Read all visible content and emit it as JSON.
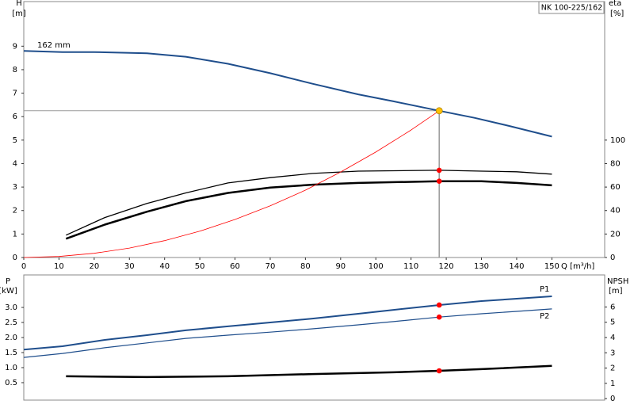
{
  "chart_data": [
    {
      "type": "line",
      "title": "NK 100-225/162",
      "x_label": "Q [m³/h]",
      "y_label": "H",
      "y_unit": "[m]",
      "y2_label": "eta",
      "y2_unit": "[%]",
      "xlim": [
        0,
        165
      ],
      "xticks": [
        0,
        10,
        20,
        30,
        40,
        50,
        60,
        70,
        80,
        90,
        100,
        110,
        120,
        130,
        140,
        150
      ],
      "ylim": [
        0,
        10.9
      ],
      "yticks": [
        0,
        1,
        2,
        3,
        4,
        5,
        6,
        7,
        8,
        9
      ],
      "y2lim": [
        0,
        218
      ],
      "y2ticks": [
        0,
        20,
        40,
        60,
        80,
        100
      ],
      "operating_point": {
        "x": 118,
        "y": 6.25,
        "color": "#ffc000",
        "guide_color": "#999999"
      },
      "series": [
        {
          "name": "162 mm",
          "color": "#1f4e8c",
          "line_width": 2,
          "x": [
            0,
            11,
            20,
            35,
            46,
            58,
            70,
            82,
            95,
            105,
            118,
            128,
            138,
            150
          ],
          "values": [
            8.8,
            8.75,
            8.75,
            8.7,
            8.55,
            8.25,
            7.85,
            7.4,
            6.95,
            6.65,
            6.25,
            5.95,
            5.6,
            5.15
          ]
        },
        {
          "color": "#000000",
          "line_width": 1.3,
          "axis": "y2",
          "marker": "#ff0000",
          "x": [
            12,
            23,
            35,
            46,
            58,
            70,
            82,
            95,
            118,
            130,
            140,
            150
          ],
          "values": [
            19,
            34,
            46,
            55,
            63.5,
            68,
            71.6,
            73.6,
            74.3,
            73.6,
            73,
            71
          ]
        },
        {
          "color": "#000000",
          "line_width": 2.5,
          "axis": "y2",
          "marker": "#ff0000",
          "x": [
            12,
            23,
            35,
            46,
            58,
            70,
            82,
            95,
            118,
            130,
            140,
            150
          ],
          "values": [
            16,
            28,
            39,
            48,
            55,
            59.5,
            62,
            63.5,
            65,
            65,
            63.5,
            61.5
          ]
        },
        {
          "color": "#ff0000",
          "line_width": 0.8,
          "x": [
            0,
            10,
            20,
            30,
            40,
            50,
            60,
            70,
            80,
            90,
            100,
            110,
            118
          ],
          "values": [
            0,
            0.045,
            0.18,
            0.4,
            0.72,
            1.12,
            1.62,
            2.2,
            2.87,
            3.64,
            4.49,
            5.43,
            6.25
          ]
        }
      ]
    },
    {
      "type": "line",
      "y_label": "P",
      "y_unit": "[kW]",
      "y2_label": "NPSH",
      "y2_unit": "[m]",
      "xlim": [
        0,
        165
      ],
      "ylim": [
        -0.08,
        4.08
      ],
      "yticks": [
        {
          "value": 0.5,
          "label": "0.5"
        },
        {
          "value": 1,
          "label": "1.0"
        },
        1.5,
        {
          "value": 2,
          "label": "2.0"
        },
        2.5,
        {
          "value": 3,
          "label": "3.0"
        }
      ],
      "y2lim": [
        -0.1,
        8.1
      ],
      "y2ticks": [
        0,
        1,
        2,
        3,
        4,
        5,
        6
      ],
      "operating_point": {
        "x": 118
      },
      "series": [
        {
          "name": "P1",
          "color": "#1f4e8c",
          "line_width": 2,
          "marker": "#ff0000",
          "x": [
            0,
            11,
            23,
            35,
            46,
            58,
            70,
            82,
            95,
            105,
            118,
            130,
            140,
            150
          ],
          "values": [
            1.6,
            1.71,
            1.92,
            2.08,
            2.24,
            2.37,
            2.5,
            2.63,
            2.79,
            2.92,
            3.08,
            3.21,
            3.29,
            3.37
          ]
        },
        {
          "name": "P2",
          "color": "#1f4e8c",
          "line_width": 1.2,
          "marker": "#ff0000",
          "x": [
            0,
            11,
            23,
            35,
            46,
            58,
            70,
            82,
            95,
            105,
            118,
            130,
            140,
            150
          ],
          "values": [
            1.34,
            1.47,
            1.66,
            1.82,
            1.97,
            2.08,
            2.18,
            2.29,
            2.42,
            2.53,
            2.68,
            2.79,
            2.87,
            2.95
          ]
        },
        {
          "color": "#000000",
          "line_width": 2.5,
          "axis": "y2",
          "marker": "#ff0000",
          "x": [
            12,
            35,
            58,
            82,
            105,
            118,
            130,
            150
          ],
          "values": [
            1.46,
            1.41,
            1.46,
            1.61,
            1.72,
            1.82,
            1.93,
            2.14
          ]
        }
      ]
    }
  ]
}
